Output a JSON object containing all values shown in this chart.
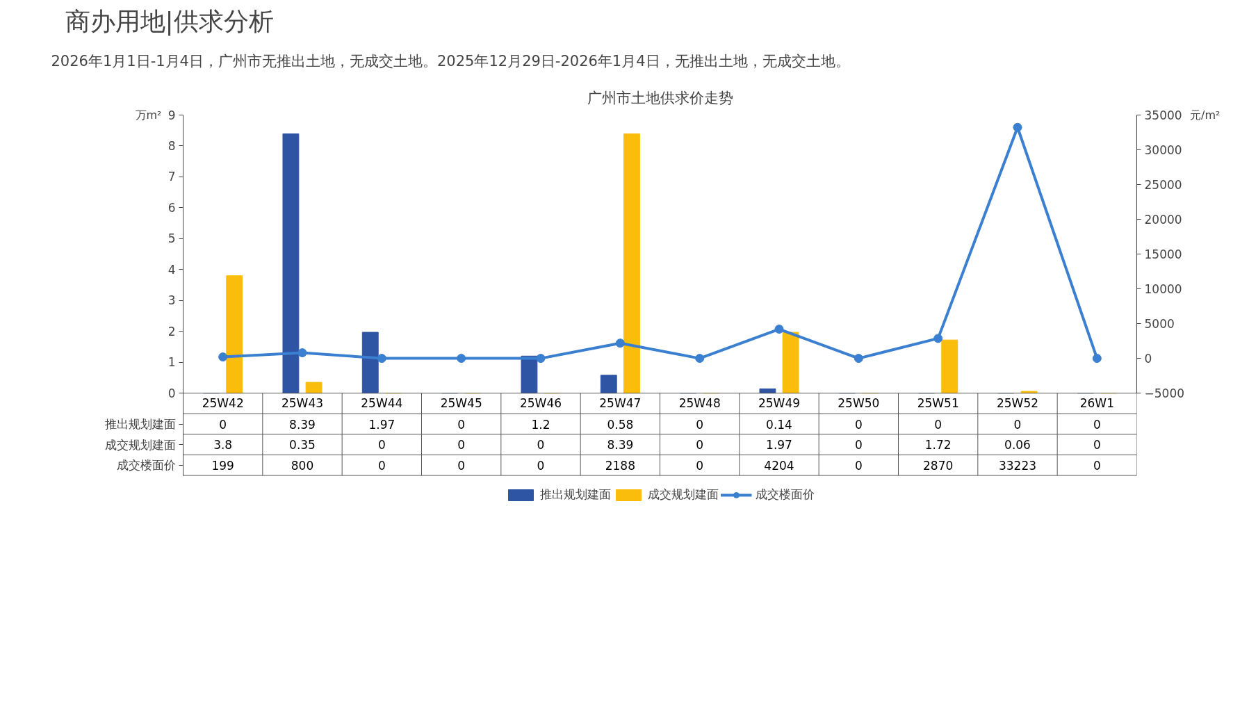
{
  "chart_data": {
    "type": "bar",
    "title": "商办用地|供求分析",
    "subtitle": "2026年1月1日-1月4日，广州市无推出土地，无成交土地。2025年12月29日-2026年1月4日，无推出土地，无成交土地。",
    "annotations": [
      "广州市土地供求价走势"
    ],
    "ylabel": "万m²",
    "y2label": "元/m²",
    "categories": [
      "25W42",
      "25W43",
      "25W44",
      "25W45",
      "25W46",
      "25W47",
      "25W48",
      "25W49",
      "25W50",
      "25W51",
      "25W52",
      "26W1"
    ],
    "series": [
      {
        "name": "推出规划建面",
        "color": "#2e54a4",
        "values": [
          0,
          8.39,
          1.97,
          0,
          1.2,
          0.58,
          0,
          0.14,
          0,
          0,
          0,
          0
        ]
      },
      {
        "name": "成交规划建面",
        "color": "#fbbd0c",
        "values": [
          3.8,
          0.35,
          0,
          0,
          0,
          8.39,
          0,
          1.97,
          0,
          1.72,
          0.06,
          0
        ]
      },
      {
        "name": "成交楼面价",
        "type": "line",
        "axis": "y2",
        "color": "#3a7fd0",
        "values": [
          199,
          800,
          0,
          0,
          0,
          2188,
          0,
          4204,
          0,
          2870,
          33223,
          0
        ]
      }
    ],
    "ylim": [
      0,
      9
    ],
    "yticks": [
      0,
      1,
      2,
      3,
      4,
      5,
      6,
      7,
      8,
      9
    ],
    "y2lim": [
      -5000,
      35000
    ],
    "y2ticks": [
      -5000,
      0,
      5000,
      10000,
      15000,
      20000,
      25000,
      30000,
      35000
    ],
    "data_labels": true,
    "grid": false,
    "legend": "bottom",
    "marker": "circle",
    "line_style": "solid"
  }
}
